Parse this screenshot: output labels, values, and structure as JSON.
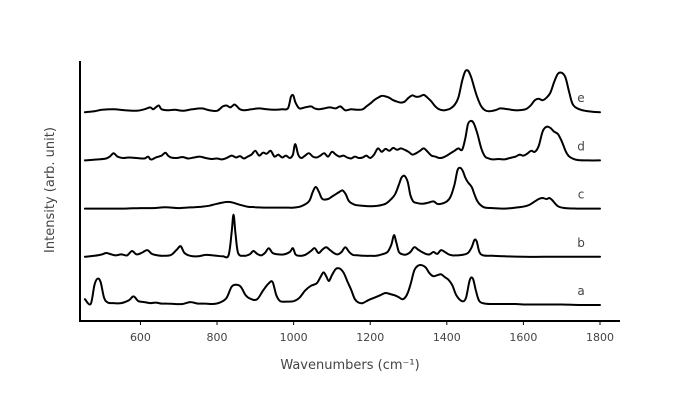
{
  "chart_data": {
    "type": "line",
    "title": "",
    "xlabel": "Wavenumbers (cm⁻¹)",
    "ylabel": "Intensity (arb. unit)",
    "xlim": [
      450,
      1800
    ],
    "x_ticks": [
      600,
      800,
      1000,
      1200,
      1400,
      1600,
      1800
    ],
    "y_ticks_shown": false,
    "grid": false,
    "legend": "none",
    "line_color": "#000000",
    "stack_offset": 1.0,
    "series": [
      {
        "name": "a",
        "baseline": 0,
        "x": [
          455,
          470,
          480,
          488,
          496,
          505,
          515,
          530,
          550,
          570,
          582,
          595,
          610,
          625,
          640,
          655,
          670,
          690,
          710,
          730,
          750,
          770,
          790,
          810,
          825,
          838,
          850,
          862,
          875,
          890,
          905,
          920,
          935,
          945,
          955,
          965,
          980,
          1000,
          1015,
          1030,
          1045,
          1060,
          1070,
          1078,
          1085,
          1092,
          1100,
          1110,
          1120,
          1130,
          1140,
          1150,
          1160,
          1170,
          1180,
          1195,
          1210,
          1225,
          1240,
          1255,
          1265,
          1275,
          1285,
          1295,
          1305,
          1315,
          1325,
          1335,
          1345,
          1355,
          1365,
          1375,
          1385,
          1395,
          1405,
          1415,
          1425,
          1440,
          1450,
          1460,
          1468,
          1476,
          1485,
          1500,
          1520,
          1540,
          1560,
          1580,
          1600,
          1620,
          1650,
          1700,
          1750,
          1800
        ],
        "y": [
          0.12,
          0.02,
          0.42,
          0.55,
          0.48,
          0.15,
          0.05,
          0.04,
          0.04,
          0.1,
          0.18,
          0.08,
          0.06,
          0.04,
          0.05,
          0.03,
          0.03,
          0.02,
          0.02,
          0.06,
          0.03,
          0.03,
          0.02,
          0.06,
          0.15,
          0.38,
          0.42,
          0.38,
          0.2,
          0.12,
          0.12,
          0.3,
          0.45,
          0.48,
          0.2,
          0.08,
          0.07,
          0.08,
          0.15,
          0.3,
          0.4,
          0.45,
          0.58,
          0.68,
          0.6,
          0.5,
          0.62,
          0.75,
          0.76,
          0.68,
          0.5,
          0.32,
          0.12,
          0.05,
          0.04,
          0.1,
          0.15,
          0.2,
          0.25,
          0.22,
          0.2,
          0.16,
          0.12,
          0.2,
          0.42,
          0.72,
          0.82,
          0.83,
          0.78,
          0.66,
          0.6,
          0.62,
          0.64,
          0.58,
          0.52,
          0.4,
          0.2,
          0.08,
          0.15,
          0.52,
          0.55,
          0.3,
          0.08,
          0.03,
          0.02,
          0.02,
          0.02,
          0.02,
          0.01,
          0.01,
          0.01,
          0.01,
          0.0,
          0.0
        ]
      },
      {
        "name": "b",
        "baseline": 1,
        "x": [
          455,
          480,
          500,
          510,
          520,
          535,
          550,
          565,
          578,
          590,
          605,
          618,
          630,
          645,
          660,
          680,
          695,
          705,
          715,
          730,
          750,
          770,
          790,
          800,
          815,
          830,
          838,
          843,
          848,
          855,
          870,
          885,
          895,
          905,
          915,
          925,
          935,
          945,
          960,
          975,
          990,
          998,
          1005,
          1015,
          1030,
          1045,
          1055,
          1065,
          1075,
          1085,
          1095,
          1105,
          1115,
          1125,
          1135,
          1145,
          1155,
          1170,
          1185,
          1200,
          1215,
          1230,
          1245,
          1255,
          1262,
          1268,
          1275,
          1285,
          1295,
          1305,
          1315,
          1325,
          1335,
          1345,
          1355,
          1365,
          1375,
          1385,
          1395,
          1405,
          1415,
          1425,
          1440,
          1455,
          1465,
          1472,
          1478,
          1485,
          1495,
          1520,
          1550,
          1600,
          1650,
          1700,
          1750,
          1800
        ],
        "y": [
          0.0,
          0.02,
          0.05,
          0.08,
          0.06,
          0.03,
          0.05,
          0.03,
          0.12,
          0.05,
          0.09,
          0.14,
          0.06,
          0.03,
          0.02,
          0.04,
          0.15,
          0.22,
          0.08,
          0.02,
          0.01,
          0.04,
          0.03,
          0.02,
          0.01,
          0.03,
          0.5,
          0.88,
          0.5,
          0.08,
          0.02,
          0.05,
          0.12,
          0.06,
          0.03,
          0.08,
          0.18,
          0.08,
          0.05,
          0.05,
          0.1,
          0.18,
          0.05,
          0.02,
          0.04,
          0.12,
          0.18,
          0.08,
          0.15,
          0.2,
          0.14,
          0.08,
          0.05,
          0.1,
          0.2,
          0.1,
          0.04,
          0.03,
          0.02,
          0.02,
          0.02,
          0.05,
          0.1,
          0.25,
          0.45,
          0.3,
          0.1,
          0.05,
          0.05,
          0.1,
          0.2,
          0.15,
          0.1,
          0.06,
          0.05,
          0.1,
          0.06,
          0.14,
          0.1,
          0.05,
          0.03,
          0.03,
          0.04,
          0.08,
          0.2,
          0.35,
          0.32,
          0.1,
          0.03,
          0.02,
          0.01,
          0.0,
          0.0,
          0.0,
          0.0,
          0.0
        ]
      },
      {
        "name": "c",
        "baseline": 2,
        "x": [
          455,
          500,
          550,
          600,
          630,
          650,
          665,
          680,
          700,
          720,
          740,
          760,
          780,
          800,
          830,
          860,
          880,
          900,
          920,
          940,
          960,
          980,
          1000,
          1020,
          1040,
          1050,
          1058,
          1066,
          1075,
          1090,
          1100,
          1110,
          1120,
          1128,
          1136,
          1145,
          1160,
          1180,
          1200,
          1220,
          1240,
          1255,
          1265,
          1275,
          1282,
          1290,
          1298,
          1305,
          1312,
          1320,
          1335,
          1350,
          1365,
          1375,
          1385,
          1400,
          1410,
          1420,
          1428,
          1435,
          1442,
          1448,
          1455,
          1465,
          1472,
          1480,
          1490,
          1500,
          1520,
          1550,
          1580,
          1610,
          1630,
          1640,
          1650,
          1660,
          1668,
          1675,
          1690,
          1710,
          1740,
          1770,
          1800
        ],
        "y": [
          0.0,
          0.0,
          0.0,
          0.01,
          0.01,
          0.02,
          0.03,
          0.02,
          0.01,
          0.02,
          0.03,
          0.04,
          0.06,
          0.1,
          0.14,
          0.08,
          0.04,
          0.03,
          0.02,
          0.02,
          0.02,
          0.02,
          0.02,
          0.05,
          0.15,
          0.35,
          0.45,
          0.35,
          0.2,
          0.2,
          0.25,
          0.3,
          0.35,
          0.38,
          0.3,
          0.15,
          0.08,
          0.06,
          0.05,
          0.06,
          0.1,
          0.2,
          0.3,
          0.5,
          0.65,
          0.68,
          0.55,
          0.28,
          0.15,
          0.12,
          0.1,
          0.12,
          0.15,
          0.1,
          0.1,
          0.15,
          0.25,
          0.5,
          0.8,
          0.85,
          0.78,
          0.65,
          0.55,
          0.45,
          0.3,
          0.15,
          0.06,
          0.02,
          0.01,
          0.0,
          0.02,
          0.06,
          0.15,
          0.2,
          0.22,
          0.2,
          0.22,
          0.18,
          0.05,
          0.01,
          0.0,
          0.0,
          0.0
        ]
      },
      {
        "name": "d",
        "baseline": 3,
        "x": [
          455,
          490,
          510,
          520,
          530,
          540,
          555,
          570,
          590,
          610,
          620,
          625,
          630,
          640,
          655,
          665,
          672,
          680,
          695,
          710,
          725,
          740,
          755,
          770,
          785,
          800,
          812,
          825,
          838,
          850,
          860,
          870,
          880,
          890,
          900,
          910,
          920,
          930,
          940,
          950,
          960,
          970,
          980,
          990,
          998,
          1004,
          1012,
          1020,
          1030,
          1040,
          1050,
          1060,
          1070,
          1080,
          1090,
          1100,
          1110,
          1120,
          1130,
          1140,
          1150,
          1160,
          1170,
          1180,
          1190,
          1200,
          1210,
          1220,
          1230,
          1240,
          1250,
          1260,
          1270,
          1280,
          1290,
          1300,
          1310,
          1320,
          1330,
          1340,
          1350,
          1360,
          1370,
          1380,
          1390,
          1400,
          1410,
          1420,
          1430,
          1440,
          1448,
          1455,
          1462,
          1470,
          1480,
          1490,
          1500,
          1510,
          1520,
          1535,
          1550,
          1560,
          1570,
          1580,
          1590,
          1600,
          1610,
          1620,
          1630,
          1640,
          1650,
          1660,
          1670,
          1680,
          1690,
          1700,
          1710,
          1720,
          1740,
          1770,
          1800
        ],
        "y": [
          0.0,
          0.02,
          0.04,
          0.08,
          0.15,
          0.08,
          0.05,
          0.06,
          0.05,
          0.04,
          0.08,
          0.03,
          0.02,
          0.06,
          0.1,
          0.16,
          0.1,
          0.06,
          0.05,
          0.07,
          0.04,
          0.06,
          0.08,
          0.05,
          0.03,
          0.04,
          0.02,
          0.05,
          0.1,
          0.06,
          0.09,
          0.04,
          0.08,
          0.12,
          0.2,
          0.1,
          0.16,
          0.14,
          0.2,
          0.08,
          0.12,
          0.06,
          0.1,
          0.05,
          0.12,
          0.34,
          0.12,
          0.05,
          0.1,
          0.15,
          0.08,
          0.06,
          0.1,
          0.15,
          0.08,
          0.18,
          0.12,
          0.08,
          0.1,
          0.06,
          0.04,
          0.08,
          0.05,
          0.06,
          0.1,
          0.05,
          0.12,
          0.25,
          0.18,
          0.24,
          0.2,
          0.26,
          0.22,
          0.25,
          0.22,
          0.18,
          0.12,
          0.15,
          0.2,
          0.25,
          0.18,
          0.1,
          0.08,
          0.05,
          0.06,
          0.1,
          0.15,
          0.2,
          0.25,
          0.22,
          0.45,
          0.75,
          0.82,
          0.78,
          0.55,
          0.25,
          0.08,
          0.04,
          0.02,
          0.03,
          0.02,
          0.04,
          0.06,
          0.08,
          0.12,
          0.1,
          0.14,
          0.2,
          0.18,
          0.3,
          0.6,
          0.7,
          0.68,
          0.6,
          0.55,
          0.4,
          0.2,
          0.08,
          0.01,
          0.0,
          0.0
        ]
      },
      {
        "name": "e",
        "baseline": 4,
        "x": [
          455,
          480,
          500,
          530,
          560,
          590,
          610,
          625,
          633,
          640,
          648,
          655,
          670,
          690,
          710,
          735,
          760,
          780,
          800,
          815,
          825,
          835,
          845,
          852,
          860,
          870,
          890,
          910,
          930,
          950,
          970,
          985,
          993,
          999,
          1005,
          1015,
          1030,
          1045,
          1055,
          1065,
          1080,
          1095,
          1110,
          1122,
          1135,
          1150,
          1165,
          1180,
          1190,
          1200,
          1210,
          1220,
          1230,
          1240,
          1250,
          1260,
          1270,
          1280,
          1290,
          1300,
          1310,
          1320,
          1330,
          1340,
          1350,
          1360,
          1370,
          1380,
          1390,
          1400,
          1410,
          1420,
          1430,
          1440,
          1448,
          1456,
          1464,
          1472,
          1480,
          1490,
          1500,
          1510,
          1520,
          1530,
          1540,
          1560,
          1580,
          1600,
          1610,
          1620,
          1630,
          1640,
          1650,
          1660,
          1670,
          1680,
          1690,
          1700,
          1710,
          1720,
          1730,
          1750,
          1780,
          1800
        ],
        "y": [
          0.0,
          0.02,
          0.05,
          0.06,
          0.04,
          0.03,
          0.06,
          0.1,
          0.06,
          0.1,
          0.14,
          0.06,
          0.04,
          0.05,
          0.03,
          0.06,
          0.08,
          0.04,
          0.03,
          0.12,
          0.14,
          0.1,
          0.16,
          0.12,
          0.06,
          0.04,
          0.06,
          0.08,
          0.06,
          0.05,
          0.06,
          0.08,
          0.32,
          0.35,
          0.2,
          0.08,
          0.1,
          0.12,
          0.08,
          0.06,
          0.08,
          0.1,
          0.08,
          0.12,
          0.04,
          0.06,
          0.05,
          0.06,
          0.12,
          0.18,
          0.25,
          0.3,
          0.34,
          0.33,
          0.3,
          0.25,
          0.22,
          0.2,
          0.22,
          0.3,
          0.35,
          0.32,
          0.33,
          0.36,
          0.3,
          0.22,
          0.12,
          0.06,
          0.04,
          0.05,
          0.08,
          0.15,
          0.3,
          0.65,
          0.85,
          0.86,
          0.72,
          0.5,
          0.3,
          0.12,
          0.04,
          0.02,
          0.03,
          0.05,
          0.08,
          0.06,
          0.04,
          0.05,
          0.08,
          0.15,
          0.25,
          0.28,
          0.25,
          0.3,
          0.4,
          0.62,
          0.8,
          0.82,
          0.72,
          0.4,
          0.15,
          0.05,
          0.01,
          0.0
        ]
      }
    ]
  }
}
